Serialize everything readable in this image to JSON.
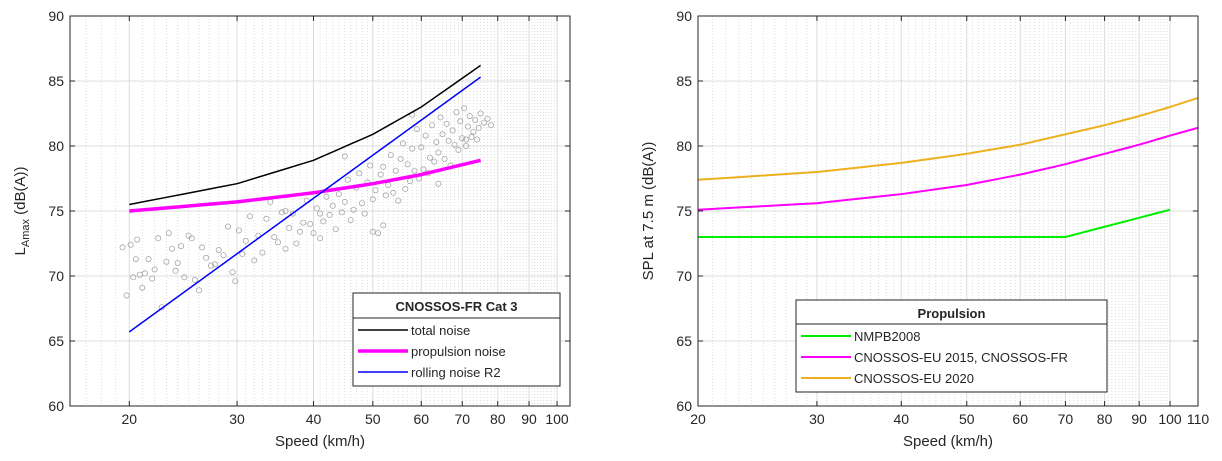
{
  "chart_data": [
    {
      "type": "line",
      "xscale": "log",
      "xlim": [
        16,
        105
      ],
      "ylim": [
        60,
        90
      ],
      "xticks": [
        20,
        30,
        40,
        50,
        60,
        70,
        80,
        90,
        100
      ],
      "xticklabels": [
        "20",
        "30",
        "40",
        "50",
        "60",
        "70",
        "80",
        "90",
        "100"
      ],
      "yticks": [
        60,
        65,
        70,
        75,
        80,
        85,
        90
      ],
      "xlabel": "Speed (km/h)",
      "ylabel_main": "L",
      "ylabel_sub": "Amax",
      "ylabel_tail": " (dB(A))",
      "grid": true,
      "legend": {
        "title": "CNOSSOS-FR Cat 3",
        "placement": "bottom-right"
      },
      "series": [
        {
          "name": "total noise",
          "color": "#000000",
          "width": 1.5,
          "x": [
            20,
            30,
            40,
            50,
            60,
            75
          ],
          "y": [
            75.5,
            77.1,
            78.9,
            80.9,
            83.0,
            86.2
          ]
        },
        {
          "name": "propulsion noise",
          "color": "#ff00ff",
          "width": 3.5,
          "x": [
            20,
            30,
            40,
            50,
            60,
            75
          ],
          "y": [
            75.0,
            75.7,
            76.4,
            77.1,
            77.8,
            78.9
          ]
        },
        {
          "name": "rolling noise R2",
          "color": "#0000ff",
          "width": 1.5,
          "x": [
            20,
            75
          ],
          "y": [
            65.7,
            85.3
          ]
        }
      ],
      "scatter": {
        "color": "#a6a6a6",
        "x": [
          19.5,
          19.8,
          20.1,
          20.3,
          20.5,
          20.6,
          20.8,
          21.0,
          21.2,
          21.5,
          21.8,
          22.0,
          22.3,
          22.6,
          23.0,
          23.2,
          23.5,
          23.8,
          24.0,
          24.3,
          24.6,
          25.0,
          25.3,
          25.6,
          26.0,
          26.3,
          26.7,
          27.2,
          27.6,
          28.0,
          28.5,
          29.0,
          29.5,
          29.8,
          30.2,
          30.6,
          31.0,
          31.5,
          32.0,
          32.5,
          33.0,
          33.5,
          34.0,
          34.5,
          35.0,
          35.5,
          36.0,
          36.5,
          37.0,
          37.5,
          38.0,
          38.5,
          39.0,
          39.5,
          40.0,
          40.5,
          41.0,
          41.5,
          42.0,
          42.5,
          43.0,
          43.5,
          44.0,
          44.5,
          45.0,
          45.5,
          46.0,
          46.5,
          47.0,
          47.5,
          48.0,
          48.5,
          49.0,
          49.5,
          50.0,
          50.5,
          51.0,
          51.5,
          52.0,
          52.5,
          53.0,
          53.5,
          54.0,
          54.5,
          55.0,
          55.5,
          56.0,
          56.5,
          57.0,
          57.5,
          58.0,
          58.5,
          59.0,
          59.5,
          60.0,
          60.5,
          61.0,
          61.5,
          62.0,
          62.5,
          63.0,
          63.5,
          64.0,
          64.5,
          65.0,
          65.5,
          66.0,
          66.5,
          67.0,
          67.5,
          68.0,
          68.5,
          69.0,
          69.5,
          70.0,
          70.5,
          71.0,
          71.5,
          72.0,
          72.5,
          73.0,
          73.5,
          74.0,
          74.5,
          75.0,
          76.0,
          77.0,
          78.0,
          45.0,
          58.0,
          64.0,
          71.0,
          36.0,
          50.0,
          52.0,
          41.0
        ],
        "y": [
          72.2,
          68.5,
          72.4,
          69.9,
          71.3,
          72.8,
          70.1,
          69.1,
          70.2,
          71.3,
          69.8,
          70.5,
          72.9,
          67.6,
          71.1,
          73.3,
          72.1,
          70.4,
          71.0,
          72.3,
          69.9,
          73.1,
          72.9,
          69.7,
          68.9,
          72.2,
          71.4,
          70.8,
          70.9,
          72.0,
          71.6,
          73.8,
          70.3,
          69.6,
          73.5,
          71.7,
          72.7,
          74.6,
          71.2,
          73.1,
          71.8,
          74.4,
          75.7,
          73.0,
          72.6,
          74.9,
          72.1,
          73.7,
          74.8,
          72.5,
          73.4,
          74.1,
          75.8,
          74.0,
          73.3,
          75.2,
          72.9,
          74.2,
          76.1,
          74.7,
          75.4,
          73.6,
          76.3,
          74.9,
          75.7,
          77.4,
          74.3,
          75.1,
          76.8,
          77.9,
          75.6,
          74.8,
          77.2,
          78.5,
          75.9,
          76.6,
          73.3,
          77.8,
          78.4,
          76.2,
          77.0,
          79.3,
          76.4,
          78.1,
          75.8,
          79.0,
          80.2,
          76.7,
          78.6,
          77.3,
          79.8,
          78.1,
          81.3,
          77.5,
          79.9,
          78.2,
          80.8,
          77.9,
          79.1,
          81.6,
          78.8,
          80.3,
          79.5,
          82.2,
          80.9,
          79.0,
          81.7,
          80.4,
          78.5,
          81.2,
          80.1,
          82.6,
          79.7,
          81.9,
          80.6,
          82.9,
          80.0,
          81.5,
          82.3,
          80.7,
          81.1,
          82.0,
          80.5,
          81.4,
          82.5,
          81.8,
          82.1,
          81.6,
          79.2,
          82.4,
          77.1,
          80.5,
          75.0,
          73.4,
          73.9,
          74.8
        ]
      }
    },
    {
      "type": "line",
      "xscale": "log",
      "xlim": [
        20,
        110
      ],
      "ylim": [
        60,
        90
      ],
      "xticks": [
        20,
        30,
        40,
        50,
        60,
        70,
        80,
        90,
        100,
        110
      ],
      "xticklabels": [
        "20",
        "30",
        "40",
        "50",
        "60",
        "70",
        "80",
        "90",
        "100",
        "110"
      ],
      "yticks": [
        60,
        65,
        70,
        75,
        80,
        85,
        90
      ],
      "xlabel": "Speed (km/h)",
      "ylabel": "SPL at 7.5 m (dB(A))",
      "grid": true,
      "legend": {
        "title": "Propulsion",
        "placement": "bottom"
      },
      "series": [
        {
          "name": "NMPB2008",
          "color": "#00ee00",
          "width": 2,
          "x": [
            20,
            70,
            100
          ],
          "y": [
            73.0,
            73.0,
            75.1
          ]
        },
        {
          "name": "CNOSSOS-EU 2015, CNOSSOS-FR",
          "color": "#ff00ff",
          "width": 2,
          "x": [
            20,
            30,
            40,
            50,
            60,
            70,
            80,
            90,
            100,
            110
          ],
          "y": [
            75.1,
            75.6,
            76.3,
            77.0,
            77.8,
            78.6,
            79.4,
            80.1,
            80.8,
            81.4
          ]
        },
        {
          "name": "CNOSSOS-EU 2020",
          "color": "#edb120",
          "width": 2,
          "x": [
            20,
            30,
            40,
            50,
            60,
            70,
            80,
            90,
            100,
            110
          ],
          "y": [
            77.4,
            78.0,
            78.7,
            79.4,
            80.1,
            80.9,
            81.6,
            82.3,
            83.0,
            83.7
          ]
        }
      ]
    }
  ]
}
